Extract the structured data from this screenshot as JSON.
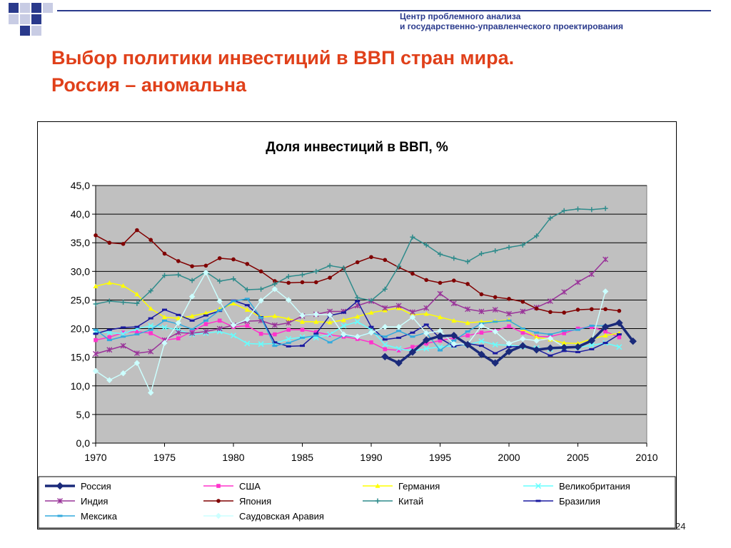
{
  "header": {
    "org_line1": "Центр проблемного анализа",
    "org_line2": "и государственно-управленческого проектирования"
  },
  "slide": {
    "title_line1": "Выбор политики  инвестиций в ВВП стран мира.",
    "title_line2": "Россия – аномальна",
    "page_number": "24"
  },
  "colors": {
    "title": "#e0401a",
    "org": "#2a3a8c",
    "plot_bg": "#c0c0c0",
    "deco_blue": "#2a3a8c",
    "deco_light": "#c8cce4"
  },
  "chart_data": {
    "type": "line",
    "title": "Доля инвестиций в ВВП, %",
    "xlabel": "",
    "ylabel": "",
    "xlim": [
      1970,
      2010
    ],
    "ylim": [
      0,
      45
    ],
    "x_ticks": [
      "1970",
      "1975",
      "1980",
      "1985",
      "1990",
      "1995",
      "2000",
      "2005",
      "2010"
    ],
    "y_ticks": [
      "0,0",
      "5,0",
      "10,0",
      "15,0",
      "20,0",
      "25,0",
      "30,0",
      "35,0",
      "40,0",
      "45,0"
    ],
    "grid": "horizontal",
    "legend_position": "bottom",
    "series": [
      {
        "name": "Россия",
        "color": "#1a2a7a",
        "marker": "diamond",
        "width": 3.5,
        "x": [
          1991,
          1992,
          1993,
          1994,
          1995,
          1996,
          1997,
          1998,
          1999,
          2000,
          2001,
          2002,
          2003,
          2004,
          2005,
          2006,
          2007,
          2008,
          2009
        ],
        "values": [
          15.1,
          14.0,
          15.9,
          18.0,
          18.7,
          18.8,
          17.2,
          15.5,
          14.0,
          16.0,
          17.0,
          16.3,
          16.6,
          16.7,
          16.8,
          17.9,
          20.3,
          21.0,
          17.8
        ]
      },
      {
        "name": "США",
        "color": "#ff33cc",
        "marker": "square",
        "width": 1.5,
        "x": [
          1970,
          1971,
          1972,
          1973,
          1974,
          1975,
          1976,
          1977,
          1978,
          1979,
          1980,
          1981,
          1982,
          1983,
          1984,
          1985,
          1986,
          1987,
          1988,
          1989,
          1990,
          1991,
          1992,
          1993,
          1994,
          1995,
          1996,
          1997,
          1998,
          1999,
          2000,
          2001,
          2002,
          2003,
          2004,
          2005,
          2006,
          2007,
          2008
        ],
        "values": [
          18.0,
          18.5,
          19.3,
          19.5,
          19.2,
          18.0,
          18.3,
          19.5,
          20.8,
          21.4,
          20.3,
          20.5,
          19.1,
          19.0,
          19.8,
          19.8,
          19.4,
          18.9,
          18.6,
          18.2,
          17.6,
          16.4,
          16.2,
          16.8,
          17.4,
          17.9,
          18.4,
          18.8,
          19.3,
          19.6,
          20.4,
          19.3,
          18.6,
          18.6,
          19.2,
          20.0,
          20.3,
          19.5,
          18.5
        ]
      },
      {
        "name": "Германия",
        "color": "#ffff00",
        "marker": "triangle",
        "width": 1.5,
        "x": [
          1970,
          1971,
          1972,
          1973,
          1974,
          1975,
          1976,
          1977,
          1978,
          1979,
          1980,
          1981,
          1982,
          1983,
          1984,
          1985,
          1986,
          1987,
          1988,
          1989,
          1990,
          1991,
          1992,
          1993,
          1994,
          1995,
          1996,
          1997,
          1998,
          1999,
          2000,
          2001,
          2002,
          2003,
          2004,
          2005,
          2006,
          2007,
          2008
        ],
        "values": [
          27.4,
          28.0,
          27.5,
          26.0,
          23.5,
          22.0,
          21.8,
          22.2,
          22.7,
          23.4,
          24.4,
          23.3,
          22.0,
          22.2,
          21.7,
          21.2,
          21.2,
          21.1,
          21.5,
          22.1,
          22.8,
          23.2,
          23.6,
          22.4,
          22.6,
          22.0,
          21.4,
          21.0,
          21.2,
          21.3,
          21.5,
          19.9,
          18.5,
          18.1,
          17.5,
          17.4,
          18.2,
          18.8,
          19.2
        ]
      },
      {
        "name": "Великобритания",
        "color": "#66ffff",
        "marker": "cross",
        "width": 1.5,
        "x": [
          1970,
          1971,
          1972,
          1973,
          1974,
          1975,
          1976,
          1977,
          1978,
          1979,
          1980,
          1981,
          1982,
          1983,
          1984,
          1985,
          1986,
          1987,
          1988,
          1989,
          1990,
          1991,
          1992,
          1993,
          1994,
          1995,
          1996,
          1997,
          1998,
          1999,
          2000,
          2001,
          2002,
          2003,
          2004,
          2005,
          2006,
          2007,
          2008
        ],
        "values": [
          19.5,
          19.3,
          19.1,
          20.0,
          20.5,
          20.2,
          19.8,
          19.0,
          19.2,
          19.5,
          18.8,
          17.4,
          17.3,
          17.4,
          18.2,
          18.5,
          18.4,
          19.0,
          20.5,
          21.2,
          19.8,
          17.2,
          16.5,
          16.1,
          16.5,
          16.8,
          17.0,
          17.2,
          17.8,
          17.2,
          17.1,
          16.9,
          16.6,
          16.4,
          16.6,
          16.7,
          17.1,
          17.5,
          16.8
        ]
      },
      {
        "name": "Индия",
        "color": "#993399",
        "marker": "asterisk",
        "width": 1.5,
        "x": [
          1970,
          1971,
          1972,
          1973,
          1974,
          1975,
          1976,
          1977,
          1978,
          1979,
          1980,
          1981,
          1982,
          1983,
          1984,
          1985,
          1986,
          1987,
          1988,
          1989,
          1990,
          1991,
          1992,
          1993,
          1994,
          1995,
          1996,
          1997,
          1998,
          1999,
          2000,
          2001,
          2002,
          2003,
          2004,
          2005,
          2006,
          2007
        ],
        "values": [
          15.6,
          16.3,
          17.0,
          15.7,
          16.0,
          18.0,
          19.3,
          19.2,
          19.5,
          20.0,
          20.6,
          21.3,
          21.4,
          20.6,
          21.0,
          22.2,
          22.5,
          23.0,
          23.0,
          24.0,
          24.8,
          23.6,
          24.0,
          22.9,
          23.6,
          26.1,
          24.4,
          23.4,
          23.0,
          23.3,
          22.6,
          23.0,
          23.7,
          24.8,
          26.4,
          28.1,
          29.5,
          32.1
        ]
      },
      {
        "name": "Япония",
        "color": "#800000",
        "marker": "circle",
        "width": 1.5,
        "x": [
          1970,
          1971,
          1972,
          1973,
          1974,
          1975,
          1976,
          1977,
          1978,
          1979,
          1980,
          1981,
          1982,
          1983,
          1984,
          1985,
          1986,
          1987,
          1988,
          1989,
          1990,
          1991,
          1992,
          1993,
          1994,
          1995,
          1996,
          1997,
          1998,
          1999,
          2000,
          2001,
          2002,
          2003,
          2004,
          2005,
          2006,
          2007,
          2008
        ],
        "values": [
          36.3,
          35.0,
          34.8,
          37.2,
          35.5,
          33.1,
          31.8,
          30.9,
          31.0,
          32.3,
          32.1,
          31.3,
          30.0,
          28.3,
          28.0,
          28.1,
          28.1,
          28.9,
          30.5,
          31.6,
          32.5,
          32.0,
          30.7,
          29.6,
          28.5,
          28.0,
          28.4,
          27.8,
          26.0,
          25.5,
          25.2,
          24.7,
          23.5,
          22.9,
          22.8,
          23.3,
          23.4,
          23.4,
          23.1
        ]
      },
      {
        "name": "Китай",
        "color": "#2e8b8b",
        "marker": "plus",
        "width": 1.5,
        "x": [
          1970,
          1971,
          1972,
          1973,
          1974,
          1975,
          1976,
          1977,
          1978,
          1979,
          1980,
          1981,
          1982,
          1983,
          1984,
          1985,
          1986,
          1987,
          1988,
          1989,
          1990,
          1991,
          1992,
          1993,
          1994,
          1995,
          1996,
          1997,
          1998,
          1999,
          2000,
          2001,
          2002,
          2003,
          2004,
          2005,
          2006,
          2007
        ],
        "values": [
          24.3,
          24.8,
          24.6,
          24.4,
          26.6,
          29.3,
          29.4,
          28.4,
          29.9,
          28.3,
          28.7,
          26.8,
          26.9,
          27.8,
          29.1,
          29.4,
          30.0,
          31.0,
          30.6,
          25.4,
          24.9,
          26.9,
          30.9,
          36.0,
          34.6,
          33.0,
          32.3,
          31.7,
          33.1,
          33.6,
          34.2,
          34.6,
          36.2,
          39.3,
          40.6,
          40.9,
          40.8,
          41.0
        ]
      },
      {
        "name": "Бразилия",
        "color": "#1a1aa0",
        "marker": "dash",
        "width": 1.5,
        "x": [
          1970,
          1971,
          1972,
          1973,
          1974,
          1975,
          1976,
          1977,
          1978,
          1979,
          1980,
          1981,
          1982,
          1983,
          1984,
          1985,
          1986,
          1987,
          1988,
          1989,
          1990,
          1991,
          1992,
          1993,
          1994,
          1995,
          1996,
          1997,
          1998,
          1999,
          2000,
          2001,
          2002,
          2003,
          2004,
          2005,
          2006,
          2007,
          2008
        ],
        "values": [
          19.1,
          19.8,
          20.2,
          20.3,
          21.8,
          23.3,
          22.4,
          21.4,
          22.3,
          23.1,
          24.9,
          24.1,
          22.0,
          17.6,
          16.9,
          17.0,
          19.1,
          22.3,
          22.8,
          24.8,
          20.3,
          18.1,
          18.4,
          19.3,
          20.7,
          18.3,
          16.9,
          17.4,
          17.0,
          15.7,
          16.8,
          16.9,
          16.4,
          15.3,
          16.1,
          15.9,
          16.4,
          17.5,
          19.0
        ]
      },
      {
        "name": "Мексика",
        "color": "#33aadd",
        "marker": "dash",
        "width": 1.5,
        "x": [
          1970,
          1971,
          1972,
          1973,
          1974,
          1975,
          1976,
          1977,
          1978,
          1979,
          1980,
          1981,
          1982,
          1983,
          1984,
          1985,
          1986,
          1987,
          1988,
          1989,
          1990,
          1991,
          1992,
          1993,
          1994,
          1995,
          1996,
          1997,
          1998,
          1999,
          2000,
          2001,
          2002,
          2003,
          2004,
          2005,
          2006,
          2007
        ],
        "values": [
          19.8,
          18.0,
          18.6,
          19.0,
          19.8,
          21.4,
          20.8,
          19.9,
          21.4,
          23.2,
          24.8,
          25.2,
          21.9,
          17.0,
          17.5,
          18.4,
          18.8,
          17.6,
          18.8,
          18.6,
          19.3,
          18.6,
          19.6,
          18.6,
          19.3,
          16.2,
          17.9,
          19.5,
          20.9,
          21.2,
          21.4,
          20.0,
          19.3,
          19.0,
          19.6,
          19.8,
          20.5,
          20.5
        ]
      },
      {
        "name": "Саудовская Аравия",
        "color": "#ccffff",
        "marker": "diamond",
        "width": 1.5,
        "x": [
          1970,
          1971,
          1972,
          1973,
          1974,
          1975,
          1976,
          1977,
          1978,
          1979,
          1980,
          1981,
          1982,
          1983,
          1984,
          1985,
          1986,
          1987,
          1988,
          1989,
          1990,
          1991,
          1992,
          1993,
          1994,
          1995,
          1996,
          1997,
          1998,
          1999,
          2000,
          2001,
          2002,
          2003,
          2004,
          2005,
          2006,
          2007
        ],
        "values": [
          12.6,
          11.0,
          12.2,
          14.0,
          8.8,
          17.5,
          21.0,
          25.6,
          29.8,
          24.8,
          20.6,
          21.6,
          24.9,
          26.9,
          25.0,
          22.3,
          22.5,
          22.4,
          19.0,
          18.6,
          19.3,
          20.3,
          20.3,
          22.0,
          19.2,
          19.6,
          17.3,
          17.3,
          20.5,
          19.5,
          17.4,
          18.2,
          17.9,
          18.3,
          16.8,
          16.9,
          17.8,
          26.5
        ]
      }
    ]
  }
}
